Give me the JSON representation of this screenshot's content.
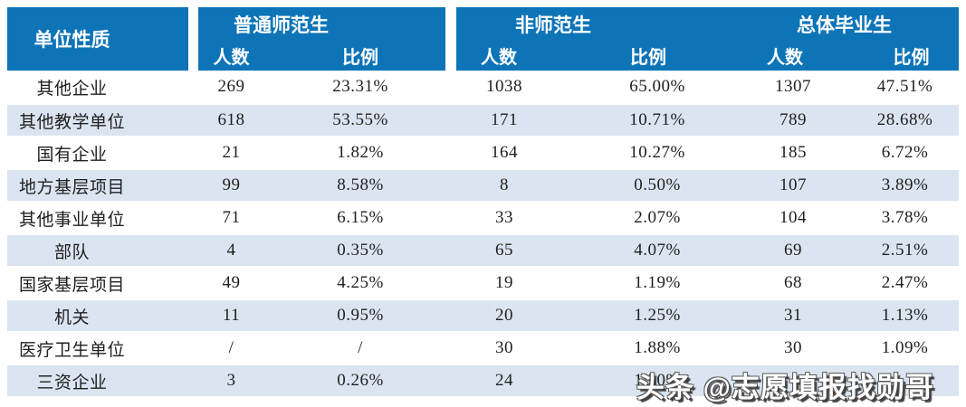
{
  "colors": {
    "header_bg": "#0d74b8",
    "header_text": "#ffffff",
    "stripe_bg": "#dbe5f1",
    "body_text": "#1f1f1f"
  },
  "header": {
    "unit_col": "单位性质",
    "groups": [
      {
        "title": "普通师范生"
      },
      {
        "title": "非师范生"
      },
      {
        "title": "总体毕业生"
      }
    ],
    "count_label": "人数",
    "ratio_label": "比例"
  },
  "rows": [
    {
      "label": "其他企业",
      "cells": [
        "269",
        "23.31%",
        "1038",
        "65.00%",
        "1307",
        "47.51%"
      ]
    },
    {
      "label": "其他教学单位",
      "cells": [
        "618",
        "53.55%",
        "171",
        "10.71%",
        "789",
        "28.68%"
      ]
    },
    {
      "label": "国有企业",
      "cells": [
        "21",
        "1.82%",
        "164",
        "10.27%",
        "185",
        "6.72%"
      ]
    },
    {
      "label": "地方基层项目",
      "cells": [
        "99",
        "8.58%",
        "8",
        "0.50%",
        "107",
        "3.89%"
      ]
    },
    {
      "label": "其他事业单位",
      "cells": [
        "71",
        "6.15%",
        "33",
        "2.07%",
        "104",
        "3.78%"
      ]
    },
    {
      "label": "部队",
      "cells": [
        "4",
        "0.35%",
        "65",
        "4.07%",
        "69",
        "2.51%"
      ]
    },
    {
      "label": "国家基层项目",
      "cells": [
        "49",
        "4.25%",
        "19",
        "1.19%",
        "68",
        "2.47%"
      ]
    },
    {
      "label": "机关",
      "cells": [
        "11",
        "0.95%",
        "20",
        "1.25%",
        "31",
        "1.13%"
      ]
    },
    {
      "label": "医疗卫生单位",
      "cells": [
        "/",
        "/",
        "30",
        "1.88%",
        "30",
        "1.09%"
      ]
    },
    {
      "label": "三资企业",
      "cells": [
        "3",
        "0.26%",
        "24",
        "1.50%",
        "",
        ""
      ]
    }
  ],
  "watermark": {
    "text": "头条 @志愿填报找勋哥"
  },
  "chart_data": {
    "type": "table",
    "columns": [
      "单位性质",
      "普通师范生-人数",
      "普通师范生-比例",
      "非师范生-人数",
      "非师范生-比例",
      "总体毕业生-人数",
      "总体毕业生-比例"
    ],
    "rows": [
      [
        "其他企业",
        "269",
        "23.31%",
        "1038",
        "65.00%",
        "1307",
        "47.51%"
      ],
      [
        "其他教学单位",
        "618",
        "53.55%",
        "171",
        "10.71%",
        "789",
        "28.68%"
      ],
      [
        "国有企业",
        "21",
        "1.82%",
        "164",
        "10.27%",
        "185",
        "6.72%"
      ],
      [
        "地方基层项目",
        "99",
        "8.58%",
        "8",
        "0.50%",
        "107",
        "3.89%"
      ],
      [
        "其他事业单位",
        "71",
        "6.15%",
        "33",
        "2.07%",
        "104",
        "3.78%"
      ],
      [
        "部队",
        "4",
        "0.35%",
        "65",
        "4.07%",
        "69",
        "2.51%"
      ],
      [
        "国家基层项目",
        "49",
        "4.25%",
        "19",
        "1.19%",
        "68",
        "2.47%"
      ],
      [
        "机关",
        "11",
        "0.95%",
        "20",
        "1.25%",
        "31",
        "1.13%"
      ],
      [
        "医疗卫生单位",
        "/",
        "/",
        "30",
        "1.88%",
        "30",
        "1.09%"
      ],
      [
        "三资企业",
        "3",
        "0.26%",
        "24",
        "1.50%",
        "",
        ""
      ]
    ],
    "legend_position": "none",
    "grid": "row-striped"
  }
}
